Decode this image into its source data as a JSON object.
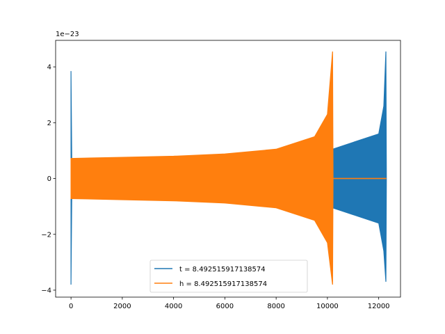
{
  "chart_data": {
    "type": "line",
    "title": "",
    "xlabel": "",
    "ylabel": "",
    "y_offset_label": "1e−23",
    "xlim": [
      -600,
      12850
    ],
    "ylim": [
      -4.25,
      4.95
    ],
    "x_ticks": [
      0,
      2000,
      4000,
      6000,
      8000,
      10000,
      12000
    ],
    "x_tick_labels": [
      "0",
      "2000",
      "4000",
      "6000",
      "8000",
      "10000",
      "12000"
    ],
    "y_ticks": [
      -4,
      -2,
      0,
      2,
      4
    ],
    "y_tick_labels": [
      "−4",
      "−2",
      "0",
      "2",
      "4"
    ],
    "grid": false,
    "legend_position": "lower center",
    "series": [
      {
        "name": "t = 8.492515917138574",
        "color": "#1f77b4",
        "note_shape": "chirp",
        "envelope": [
          {
            "x": 0,
            "upper": 3.85,
            "lower": -3.8
          },
          {
            "x": 30,
            "upper": 0.7,
            "lower": -0.7
          },
          {
            "x": 2000,
            "upper": 0.7,
            "lower": -0.7
          },
          {
            "x": 10200,
            "upper": 1.05,
            "lower": -1.05
          },
          {
            "x": 12000,
            "upper": 1.6,
            "lower": -1.6
          },
          {
            "x": 12200,
            "upper": 2.6,
            "lower": -2.6
          },
          {
            "x": 12280,
            "upper": 4.55,
            "lower": -3.7
          },
          {
            "x": 12300,
            "upper": 0.0,
            "lower": 0.0
          }
        ]
      },
      {
        "name": "h = 8.492515917138574",
        "color": "#ff7f0e",
        "envelope": [
          {
            "x": 0,
            "upper": 0.72,
            "lower": -0.72
          },
          {
            "x": 2000,
            "upper": 0.76,
            "lower": -0.76
          },
          {
            "x": 4000,
            "upper": 0.8,
            "lower": -0.8
          },
          {
            "x": 6000,
            "upper": 0.88,
            "lower": -0.88
          },
          {
            "x": 8000,
            "upper": 1.05,
            "lower": -1.05
          },
          {
            "x": 9500,
            "upper": 1.5,
            "lower": -1.5
          },
          {
            "x": 10000,
            "upper": 2.3,
            "lower": -2.3
          },
          {
            "x": 10200,
            "upper": 4.55,
            "lower": -3.8
          },
          {
            "x": 10220,
            "upper": 0.0,
            "lower": 0.0
          },
          {
            "x": 12300,
            "upper": 0.0,
            "lower": 0.0
          }
        ]
      }
    ]
  }
}
